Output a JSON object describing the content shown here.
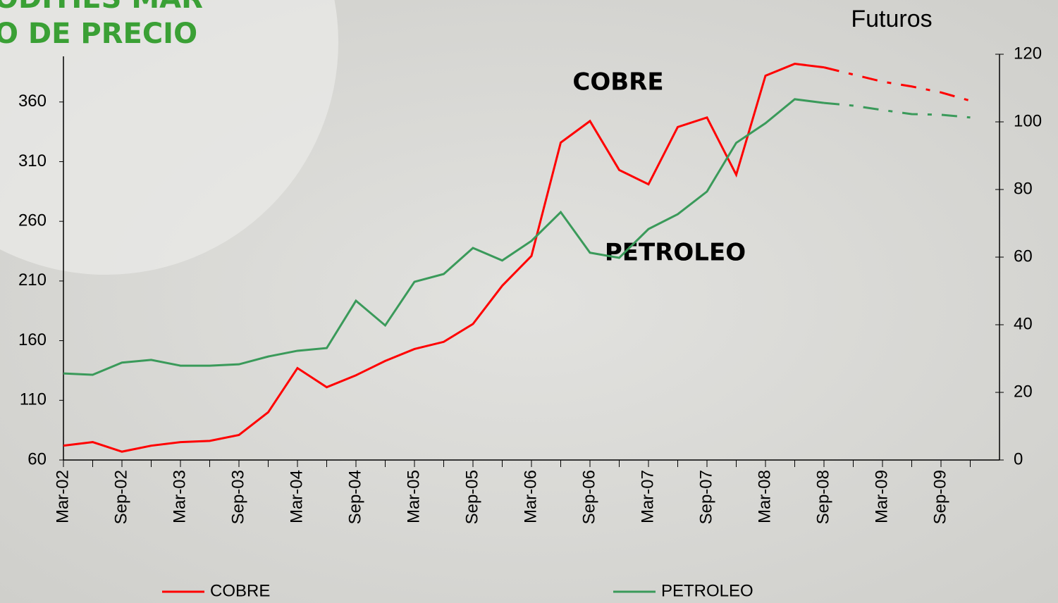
{
  "chart_data": {
    "type": "line",
    "title_lines": [
      "ODITIES MAR",
      "O DE PRECIO"
    ],
    "annotations": [
      "COBRE",
      "PETROLEO",
      "Futuros"
    ],
    "categories": [
      "Mar-02",
      null,
      "Sep-02",
      null,
      "Mar-03",
      null,
      "Sep-03",
      null,
      "Mar-04",
      null,
      "Sep-04",
      null,
      "Mar-05",
      null,
      "Sep-05",
      null,
      "Mar-06",
      null,
      "Sep-06",
      null,
      "Mar-07",
      null,
      "Sep-07",
      null,
      "Mar-08",
      null,
      "Sep-08",
      null,
      "Mar-09",
      null,
      "Sep-09",
      null
    ],
    "series": [
      {
        "name": "COBRE",
        "color": "#ff0000",
        "axis": "y",
        "dashed_from": "Sep-08",
        "values": [
          72,
          75,
          67,
          72,
          75,
          76,
          81,
          100,
          137,
          121,
          131,
          143,
          153,
          159,
          174,
          206,
          231,
          326,
          344,
          303,
          291,
          339,
          347,
          299,
          382,
          392,
          389,
          383,
          377,
          373,
          368,
          361
        ]
      },
      {
        "name": "PETROLEO",
        "color": "#3a9a5a",
        "axis": "y2",
        "dashed_from": "Sep-08",
        "values": [
          25.6,
          25.2,
          28.8,
          29.6,
          27.9,
          27.9,
          28.3,
          30.6,
          32.3,
          33.1,
          47.1,
          39.8,
          52.7,
          55,
          62.7,
          59,
          64.8,
          73.3,
          61.3,
          59.8,
          68.3,
          72.7,
          79.4,
          93.8,
          99.6,
          106.7,
          105.6,
          104.8,
          103.5,
          102.3,
          102.1,
          101.3
        ]
      }
    ],
    "ylim": [
      60,
      400
    ],
    "yticks": [
      60,
      110,
      160,
      210,
      260,
      310,
      360
    ],
    "y2lim": [
      0,
      120
    ],
    "y2ticks": [
      0,
      20,
      40,
      60,
      80,
      100,
      120
    ],
    "legend": "bottom"
  }
}
